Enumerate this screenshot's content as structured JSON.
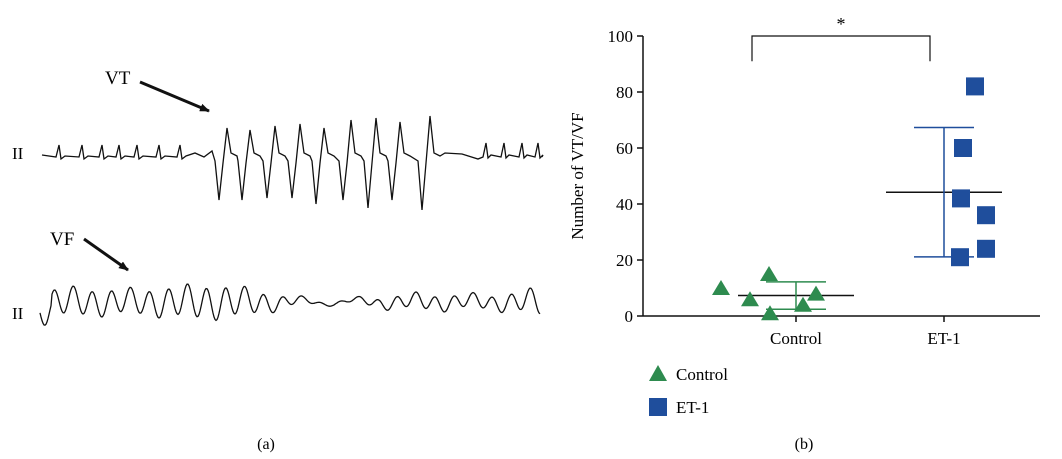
{
  "panel_a": {
    "caption": "(a)",
    "lead_label_top": "II",
    "lead_label_bottom": "II",
    "vt_label": "VT",
    "vf_label": "VF"
  },
  "panel_b": {
    "caption": "(b)",
    "significance": "*"
  },
  "chart_data": {
    "type": "scatter",
    "title": "",
    "xlabel": "",
    "ylabel": "Number of VT/VF",
    "ylim": [
      0,
      100
    ],
    "yticks": [
      0,
      20,
      40,
      60,
      80,
      100
    ],
    "categories": [
      "Control",
      "ET-1"
    ],
    "legend_placement": "bottom-left",
    "series": [
      {
        "name": "Control",
        "marker": "triangle",
        "color": "#2e8b4f",
        "category": "Control",
        "values": [
          10,
          6,
          15,
          1,
          4,
          8
        ],
        "mean": 7.3,
        "sd": 4.9
      },
      {
        "name": "ET-1",
        "marker": "square",
        "color": "#1f4e9c",
        "category": "ET-1",
        "values": [
          82,
          60,
          42,
          36,
          24,
          21
        ],
        "mean": 44.2,
        "sd": 23.1
      }
    ],
    "annotations": [
      {
        "type": "significance_bracket",
        "between": [
          "Control",
          "ET-1"
        ],
        "text": "*"
      }
    ]
  }
}
